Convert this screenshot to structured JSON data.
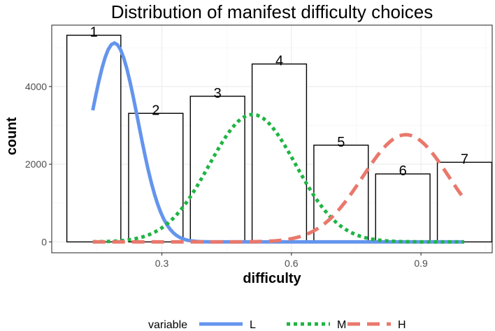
{
  "chart_data": {
    "type": "bar",
    "title": "Distribution of manifest difficulty choices",
    "xlabel": "difficulty",
    "ylabel": "count",
    "xlim": [
      0.045,
      1.065
    ],
    "ylim": [
      -280,
      5580
    ],
    "x_ticks": [
      0.3,
      0.6,
      0.9
    ],
    "x_tick_labels": [
      "0.3",
      "0.6",
      "0.9"
    ],
    "y_ticks": [
      0,
      2000,
      4000
    ],
    "y_tick_labels": [
      "0",
      "2000",
      "4000"
    ],
    "grid": true,
    "bars": [
      {
        "label": "1",
        "x_start": 0.08,
        "x_end": 0.205,
        "value": 5320
      },
      {
        "label": "2",
        "x_start": 0.223,
        "x_end": 0.349,
        "value": 3310
      },
      {
        "label": "3",
        "x_start": 0.366,
        "x_end": 0.492,
        "value": 3750
      },
      {
        "label": "4",
        "x_start": 0.509,
        "x_end": 0.635,
        "value": 4580
      },
      {
        "label": "5",
        "x_start": 0.652,
        "x_end": 0.778,
        "value": 2490
      },
      {
        "label": "6",
        "x_start": 0.795,
        "x_end": 0.921,
        "value": 1750
      },
      {
        "label": "7",
        "x_start": 0.938,
        "x_end": 1.064,
        "value": 2050
      }
    ],
    "series": [
      {
        "name": "L",
        "color": "#6495ED",
        "dash": "solid",
        "peak_x": 0.19,
        "peak_y": 5120,
        "sd": 0.055,
        "x_range": [
          0.14,
          1.0
        ]
      },
      {
        "name": "M",
        "color": "#1FB443",
        "dash": "dotted",
        "peak_x": 0.51,
        "peak_y": 3280,
        "sd": 0.1,
        "x_range": [
          0.14,
          1.0
        ]
      },
      {
        "name": "H",
        "color": "#E9786C",
        "dash": "dashed",
        "peak_x": 0.865,
        "peak_y": 2760,
        "sd": 0.1,
        "x_range": [
          0.14,
          1.0
        ]
      }
    ],
    "legend": {
      "title": "variable",
      "position": "bottom"
    }
  }
}
